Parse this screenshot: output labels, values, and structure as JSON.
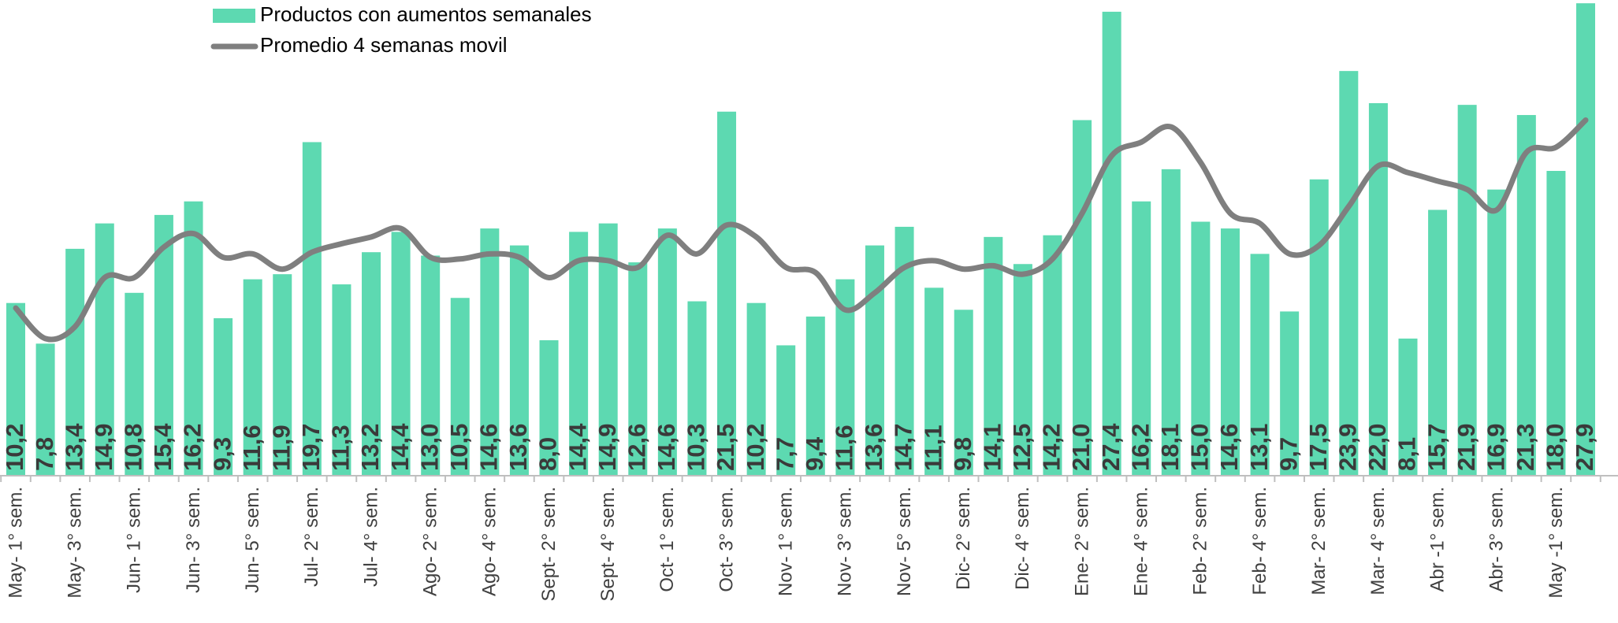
{
  "chart_data": {
    "type": "bar",
    "categories": [
      "May- 1° sem.",
      null,
      "May- 3° sem.",
      null,
      "Jun- 1° sem.",
      null,
      "Jun- 3° sem.",
      null,
      "Jun- 5° sem.",
      null,
      "Jul- 2° sem.",
      null,
      "Jul- 4° sem.",
      null,
      "Ago- 2° sem.",
      null,
      "Ago- 4° sem.",
      null,
      "Sept- 2° sem.",
      null,
      "Sept- 4° sem.",
      null,
      "Oct- 1° sem.",
      null,
      "Oct- 3° sem.",
      null,
      "Nov- 1° sem.",
      null,
      "Nov- 3° sem.",
      null,
      "Nov- 5° sem.",
      null,
      "Dic- 2° sem.",
      null,
      "Dic- 4° sem.",
      null,
      "Ene- 2° sem.",
      null,
      "Ene- 4° sem.",
      null,
      "Feb- 2° sem.",
      null,
      "Feb- 4° sem.",
      null,
      "Mar- 2° sem.",
      null,
      "Mar- 4° sem.",
      null,
      "Abr -1° sem.",
      null,
      "Abr- 3° sem.",
      null,
      "May -1° sem.",
      null
    ],
    "series": [
      {
        "name": "Productos con aumentos semanales",
        "type": "bar",
        "color": "#5dd9b1",
        "values": [
          10.2,
          7.8,
          13.4,
          14.9,
          10.8,
          15.4,
          16.2,
          9.3,
          11.6,
          11.9,
          19.7,
          11.3,
          13.2,
          14.4,
          13.0,
          10.5,
          14.6,
          13.6,
          8.0,
          14.4,
          14.9,
          12.6,
          14.6,
          10.3,
          21.5,
          10.2,
          7.7,
          9.4,
          11.6,
          13.6,
          14.7,
          11.1,
          9.8,
          14.1,
          12.5,
          14.2,
          21.0,
          27.4,
          16.2,
          18.1,
          15.0,
          14.6,
          13.1,
          9.7,
          17.5,
          23.9,
          22.0,
          8.1,
          15.7,
          21.9,
          16.9,
          21.3,
          18.0,
          27.9
        ],
        "value_labels": [
          "10,2",
          "7,8",
          "13,4",
          "14,9",
          "10,8",
          "15,4",
          "16,2",
          "9,3",
          "11,6",
          "11,9",
          "19,7",
          "11,3",
          "13,2",
          "14,4",
          "13,0",
          "10,5",
          "14,6",
          "13,6",
          "8,0",
          "14,4",
          "14,9",
          "12,6",
          "14,6",
          "10,3",
          "21,5",
          "10,2",
          "7,7",
          "9,4",
          "11,6",
          "13,6",
          "14,7",
          "11,1",
          "9,8",
          "14,1",
          "12,5",
          "14,2",
          "21,0",
          "27,4",
          "16,2",
          "18,1",
          "15,0",
          "14,6",
          "13,1",
          "9,7",
          "17,5",
          "23,9",
          "22,0",
          "8,1",
          "15,7",
          "21,9",
          "16,9",
          "21,3",
          "18,0",
          "27,9"
        ]
      },
      {
        "name": "Promedio 4 semanas movil",
        "type": "line",
        "color": "#7f7f7f",
        "values": [
          9.9,
          8.1,
          8.8,
          11.7,
          11.7,
          13.5,
          14.3,
          12.9,
          13.1,
          12.2,
          13.2,
          13.7,
          14.1,
          14.6,
          12.9,
          12.8,
          13.1,
          12.9,
          11.7,
          12.7,
          12.7,
          12.3,
          14.2,
          13.1,
          14.8,
          14.1,
          12.3,
          12.0,
          9.8,
          10.8,
          12.3,
          12.7,
          12.2,
          12.4,
          11.9,
          12.8,
          15.5,
          18.9,
          19.7,
          20.6,
          18.5,
          15.5,
          14.9,
          13.1,
          13.6,
          15.9,
          18.3,
          17.9,
          17.4,
          16.9,
          15.7,
          19.1,
          19.4,
          21.0
        ]
      }
    ],
    "ylim": [
      0,
      28
    ],
    "legend": "top-left"
  }
}
